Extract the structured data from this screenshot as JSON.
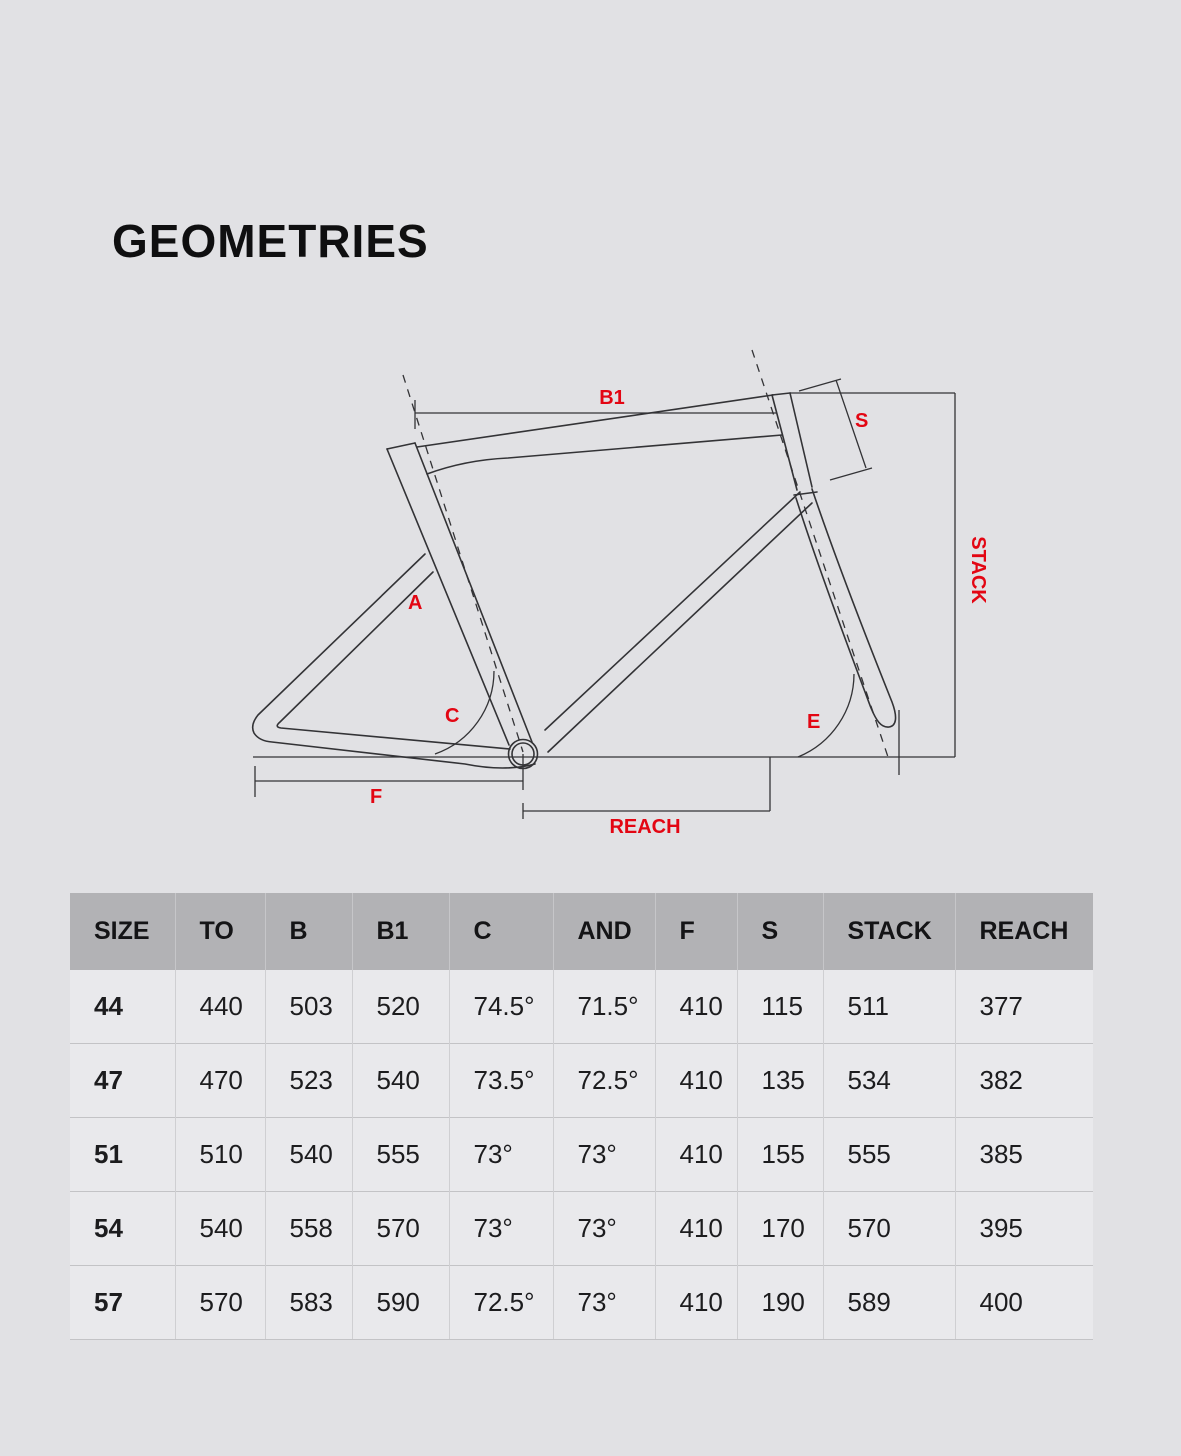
{
  "page": {
    "title": "GEOMETRIES",
    "background_color": "#e1e1e4",
    "accent_red": "#e30613"
  },
  "diagram": {
    "labels": {
      "top_tube": "B1",
      "seat_post": "S",
      "stack": "STACK",
      "reach": "REACH",
      "seat_stay": "A",
      "seat_angle": "C",
      "head_angle": "E",
      "chainstay": "F"
    }
  },
  "table": {
    "columns": [
      "SIZE",
      "TO",
      "B",
      "B1",
      "C",
      "AND",
      "F",
      "S",
      "STACK",
      "REACH"
    ],
    "rows": [
      [
        "44",
        "440",
        "503",
        "520",
        "74.5°",
        "71.5°",
        "410",
        "115",
        "511",
        "377"
      ],
      [
        "47",
        "470",
        "523",
        "540",
        "73.5°",
        "72.5°",
        "410",
        "135",
        "534",
        "382"
      ],
      [
        "51",
        "510",
        "540",
        "555",
        "73°",
        "73°",
        "410",
        "155",
        "555",
        "385"
      ],
      [
        "54",
        "540",
        "558",
        "570",
        "73°",
        "73°",
        "410",
        "170",
        "570",
        "395"
      ],
      [
        "57",
        "570",
        "583",
        "590",
        "72.5°",
        "73°",
        "410",
        "190",
        "589",
        "400"
      ]
    ]
  }
}
